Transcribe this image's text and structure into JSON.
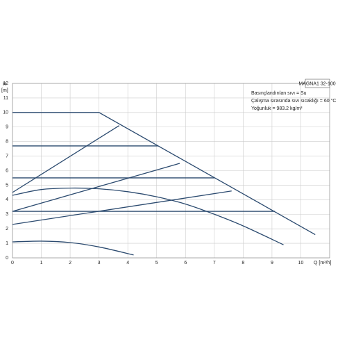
{
  "chart_data": {
    "type": "line",
    "title": "MAGNA1 32-100",
    "annotations": [
      "Basınçlandırılan sıvı = Su",
      "Çalışma sırasında sıvı sıcaklığı = 60 °C",
      "Yoğunluk = 983.2 kg/m³"
    ],
    "y_label": "H",
    "y_unit": "[m]",
    "x_label": "Q [m³/h]",
    "xlim": [
      0,
      11
    ],
    "ylim": [
      0,
      12
    ],
    "xticks": [
      0,
      1,
      2,
      3,
      4,
      5,
      6,
      7,
      8,
      9,
      10
    ],
    "yticks": [
      0,
      1,
      2,
      3,
      4,
      5,
      6,
      7,
      8,
      9,
      10,
      11,
      12
    ],
    "grid": true,
    "series": [
      {
        "color": "#2b4a6f",
        "x": [
          0,
          3,
          10.5
        ],
        "values": [
          10,
          10,
          1.6
        ]
      },
      {
        "color": "#2b4a6f",
        "x": [
          0,
          5.05
        ],
        "values": [
          7.7,
          7.7
        ]
      },
      {
        "color": "#2b4a6f",
        "x": [
          0,
          7.0
        ],
        "values": [
          5.5,
          5.5
        ]
      },
      {
        "color": "#2b4a6f",
        "x": [
          0,
          9.1
        ],
        "values": [
          3.2,
          3.2
        ]
      },
      {
        "color": "#2b4a6f",
        "x": [
          0,
          3.7
        ],
        "values": [
          4.5,
          9.1
        ]
      },
      {
        "color": "#2b4a6f",
        "x": [
          0,
          5.8
        ],
        "values": [
          3.2,
          6.5
        ]
      },
      {
        "color": "#2b4a6f",
        "x": [
          0,
          7.6
        ],
        "values": [
          2.3,
          4.6
        ]
      },
      {
        "color": "#2b4a6f",
        "x": [
          0,
          1,
          2,
          3,
          4,
          5,
          6,
          7,
          8,
          9.4
        ],
        "values": [
          4.3,
          4.7,
          4.8,
          4.75,
          4.55,
          4.2,
          3.7,
          3.0,
          2.2,
          0.9
        ]
      },
      {
        "color": "#2b4a6f",
        "x": [
          0,
          1,
          2,
          3,
          4.2
        ],
        "values": [
          1.1,
          1.15,
          1.05,
          0.75,
          0.2
        ]
      }
    ]
  }
}
